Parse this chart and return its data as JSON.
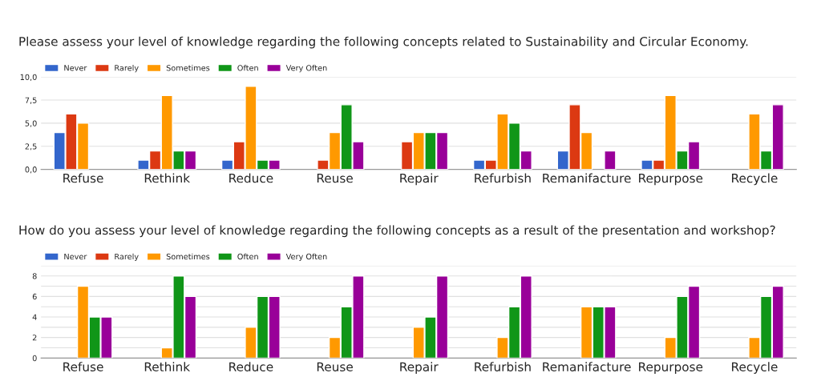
{
  "chart_data": [
    {
      "type": "bar",
      "title": "Please assess your level of knowledge regarding the following concepts related to Sustainability and Circular Economy.",
      "categories": [
        "Refuse",
        "Rethink",
        "Reduce",
        "Reuse",
        "Repair",
        "Refurbish",
        "Remanifacture",
        "Repurpose",
        "Recycle"
      ],
      "series": [
        {
          "name": "Never",
          "color": "#3366cc",
          "values": [
            4,
            1,
            1,
            null,
            null,
            1,
            2,
            1,
            null
          ]
        },
        {
          "name": "Rarely",
          "color": "#dc3912",
          "values": [
            6,
            2,
            3,
            1,
            3,
            1,
            7,
            1,
            null
          ]
        },
        {
          "name": "Sometimes",
          "color": "#ff9900",
          "values": [
            5,
            8,
            9,
            4,
            4,
            6,
            4,
            8,
            6
          ]
        },
        {
          "name": "Often",
          "color": "#109618",
          "values": [
            null,
            2,
            1,
            7,
            4,
            5,
            null,
            2,
            2
          ]
        },
        {
          "name": "Very Often",
          "color": "#990099",
          "values": [
            null,
            2,
            1,
            3,
            4,
            2,
            2,
            3,
            7
          ]
        }
      ],
      "ylim": [
        0,
        10
      ],
      "yticks": [
        {
          "value": 0,
          "label": "0,0"
        },
        {
          "value": 2.5,
          "label": "2,5"
        },
        {
          "value": 5,
          "label": "5,0"
        },
        {
          "value": 7.5,
          "label": "7,5"
        },
        {
          "value": 10,
          "label": "10,0"
        }
      ],
      "grid": "y",
      "legend": "top left"
    },
    {
      "type": "bar",
      "title": "How do you assess your level of knowledge regarding the following concepts as a result of the presentation and workshop?",
      "categories": [
        "Refuse",
        "Rethink",
        "Reduce",
        "Reuse",
        "Repair",
        "Refurbish",
        "Remanifacture",
        "Repurpose",
        "Recycle"
      ],
      "series": [
        {
          "name": "Never",
          "color": "#3366cc",
          "values": [
            null,
            null,
            null,
            null,
            null,
            null,
            null,
            null,
            null
          ]
        },
        {
          "name": "Rarely",
          "color": "#dc3912",
          "values": [
            null,
            null,
            null,
            null,
            null,
            null,
            null,
            null,
            null
          ]
        },
        {
          "name": "Sometimes",
          "color": "#ff9900",
          "values": [
            7,
            1,
            3,
            2,
            3,
            2,
            5,
            2,
            2
          ]
        },
        {
          "name": "Often",
          "color": "#109618",
          "values": [
            4,
            8,
            6,
            5,
            4,
            5,
            5,
            6,
            6
          ]
        },
        {
          "name": "Very Often",
          "color": "#990099",
          "values": [
            4,
            6,
            6,
            8,
            8,
            8,
            5,
            7,
            7
          ]
        }
      ],
      "ylim": [
        0,
        9
      ],
      "yticks": [
        0,
        {
          "value": 1,
          "label": null
        },
        2,
        {
          "value": 3,
          "label": null
        },
        4,
        {
          "value": 5,
          "label": null
        },
        6,
        {
          "value": 7,
          "label": null
        },
        8,
        {
          "value": 9,
          "label": null
        }
      ],
      "grid": "y",
      "legend": "top left"
    }
  ]
}
